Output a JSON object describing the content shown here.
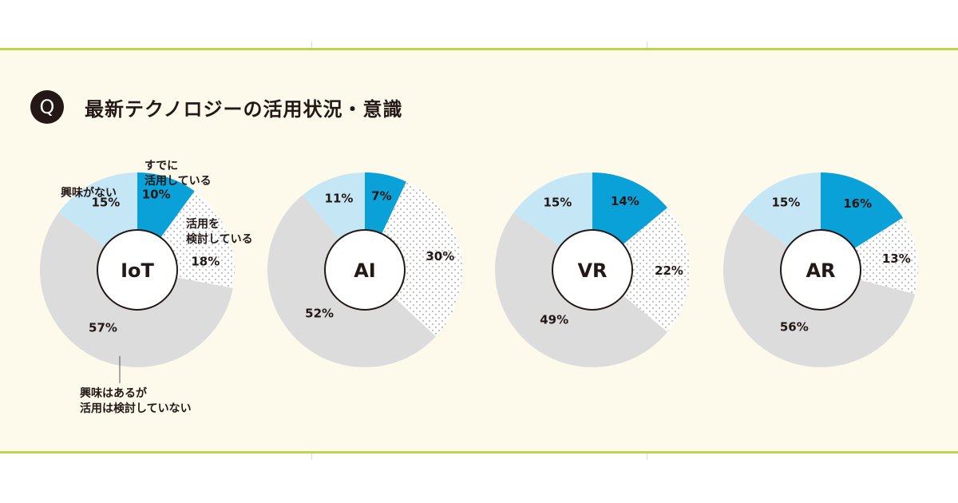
{
  "title": "最新テクノロジーの活用状況・意識",
  "badge": "Q",
  "colors": {
    "using": "#0aa0d8",
    "considering": "#ffffff",
    "considering_dots": "#9a9a9a",
    "interested_not_considering": "#dcdcdc",
    "not_interested": "#c5e6f5",
    "frame": "#bcd54a",
    "panel": "#fdfaeb"
  },
  "legend": {
    "using": "すでに\n活用している",
    "considering": "活用を\n検討している",
    "not_interested": "興味がない",
    "interested_not_considering": "興味はあるが\n活用は検討していない"
  },
  "chart_data": [
    {
      "type": "pie",
      "title": "IoT",
      "categories": [
        "すでに活用している",
        "活用を検討している",
        "興味はあるが活用は検討していない",
        "興味がない"
      ],
      "values": [
        10,
        18,
        57,
        15
      ],
      "labels": [
        "10%",
        "18%",
        "57%",
        "15%"
      ]
    },
    {
      "type": "pie",
      "title": "AI",
      "categories": [
        "すでに活用している",
        "活用を検討している",
        "興味はあるが活用は検討していない",
        "興味がない"
      ],
      "values": [
        7,
        30,
        52,
        11
      ],
      "labels": [
        "7%",
        "30%",
        "52%",
        "11%"
      ]
    },
    {
      "type": "pie",
      "title": "VR",
      "categories": [
        "すでに活用している",
        "活用を検討している",
        "興味はあるが活用は検討していない",
        "興味がない"
      ],
      "values": [
        14,
        22,
        49,
        15
      ],
      "labels": [
        "14%",
        "22%",
        "49%",
        "15%"
      ]
    },
    {
      "type": "pie",
      "title": "AR",
      "categories": [
        "すでに活用している",
        "活用を検討している",
        "興味はあるが活用は検討していない",
        "興味がない"
      ],
      "values": [
        16,
        13,
        56,
        15
      ],
      "labels": [
        "16%",
        "13%",
        "56%",
        "15%"
      ]
    }
  ]
}
